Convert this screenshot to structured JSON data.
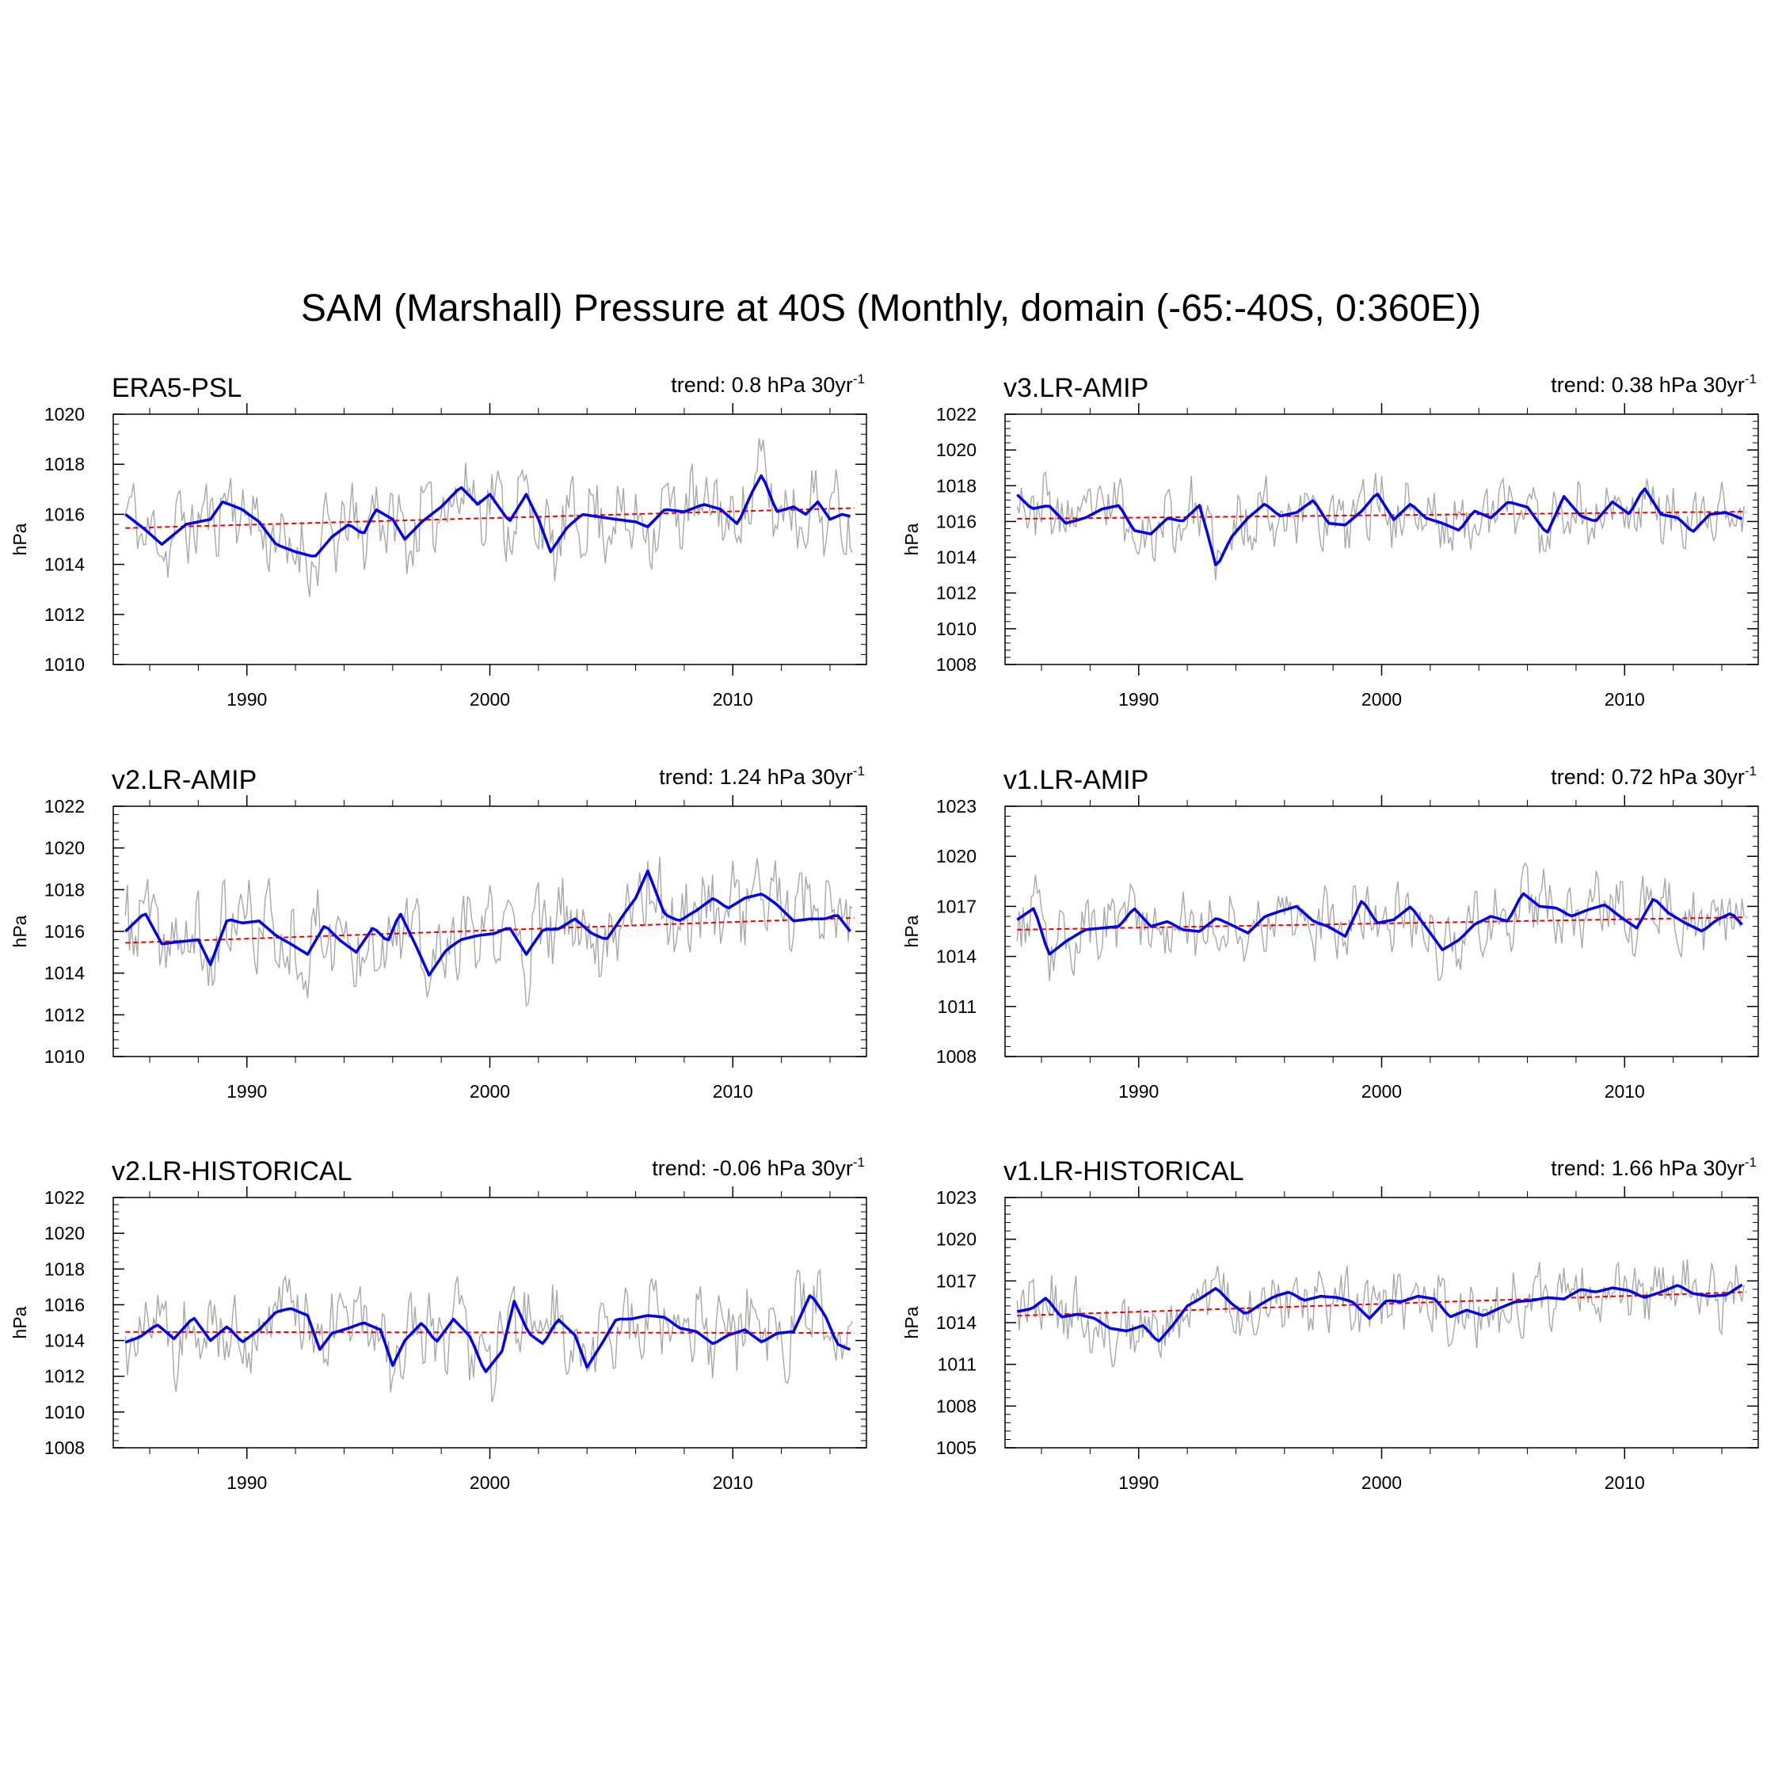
{
  "figure": {
    "title": "SAM (Marshall) Pressure at 40S (Monthly, domain (-65:-40S, 0:360E))"
  },
  "colors": {
    "monthly": "#a8a8a8",
    "smoothed": "#0000ee",
    "trend_line": "#ee0000",
    "axis": "#000000"
  },
  "chart_data": [
    {
      "type": "line",
      "title": "ERA5-PSL",
      "trend_label": "trend: 0.8 hPa 30yr",
      "trend_exp": "-1",
      "ylabel": "hPa",
      "xlim": [
        1984.5,
        2015.5
      ],
      "ylim": [
        1010,
        1020
      ],
      "yticks": [
        1010,
        1012,
        1014,
        1016,
        1018,
        1020
      ],
      "xticks": [
        1990,
        2000,
        2010
      ],
      "trend": [
        1015.45,
        1016.25
      ],
      "smoothed_points": [
        [
          1985.0,
          1016.0
        ],
        [
          1985.8,
          1015.4
        ],
        [
          1986.5,
          1014.8
        ],
        [
          1987.5,
          1015.6
        ],
        [
          1988.5,
          1015.8
        ],
        [
          1989.0,
          1016.5
        ],
        [
          1989.8,
          1016.2
        ],
        [
          1990.5,
          1015.7
        ],
        [
          1991.2,
          1014.8
        ],
        [
          1992.0,
          1014.5
        ],
        [
          1992.8,
          1014.3
        ],
        [
          1993.5,
          1015.1
        ],
        [
          1994.2,
          1015.6
        ],
        [
          1994.8,
          1015.2
        ],
        [
          1995.3,
          1016.2
        ],
        [
          1996.0,
          1015.8
        ],
        [
          1996.5,
          1015.0
        ],
        [
          1997.2,
          1015.7
        ],
        [
          1998.0,
          1016.3
        ],
        [
          1998.8,
          1017.1
        ],
        [
          1999.5,
          1016.4
        ],
        [
          2000.0,
          1016.8
        ],
        [
          2000.8,
          1015.7
        ],
        [
          2001.5,
          1016.8
        ],
        [
          2002.0,
          1015.8
        ],
        [
          2002.5,
          1014.5
        ],
        [
          2003.2,
          1015.5
        ],
        [
          2003.8,
          1016.0
        ],
        [
          2004.5,
          1015.9
        ],
        [
          2005.2,
          1015.8
        ],
        [
          2006.0,
          1015.7
        ],
        [
          2006.5,
          1015.5
        ],
        [
          2007.2,
          1016.2
        ],
        [
          2008.0,
          1016.1
        ],
        [
          2008.8,
          1016.4
        ],
        [
          2009.5,
          1016.2
        ],
        [
          2010.2,
          1015.6
        ],
        [
          2010.8,
          1016.9
        ],
        [
          2011.2,
          1017.6
        ],
        [
          2011.8,
          1016.1
        ],
        [
          2012.5,
          1016.3
        ],
        [
          2013.0,
          1016.0
        ],
        [
          2013.5,
          1016.5
        ],
        [
          2014.0,
          1015.8
        ],
        [
          2014.5,
          1016.0
        ],
        [
          2014.9,
          1015.9
        ]
      ],
      "monthly_std": 1.3,
      "seed": 11
    },
    {
      "type": "line",
      "title": "v3.LR-AMIP",
      "trend_label": "trend: 0.38 hPa 30yr",
      "trend_exp": "-1",
      "ylabel": "hPa",
      "xlim": [
        1984.5,
        2015.5
      ],
      "ylim": [
        1008,
        1022
      ],
      "yticks": [
        1008,
        1010,
        1012,
        1014,
        1016,
        1018,
        1020,
        1022
      ],
      "xticks": [
        1990,
        2000,
        2010
      ],
      "trend": [
        1016.15,
        1016.55
      ],
      "smoothed_points": [
        [
          1985.0,
          1017.5
        ],
        [
          1985.6,
          1016.7
        ],
        [
          1986.3,
          1016.9
        ],
        [
          1987.0,
          1015.9
        ],
        [
          1987.8,
          1016.2
        ],
        [
          1988.5,
          1016.7
        ],
        [
          1989.2,
          1016.9
        ],
        [
          1989.8,
          1015.5
        ],
        [
          1990.5,
          1015.3
        ],
        [
          1991.2,
          1016.2
        ],
        [
          1991.8,
          1016.0
        ],
        [
          1992.5,
          1016.9
        ],
        [
          1992.8,
          1015.5
        ],
        [
          1993.2,
          1013.4
        ],
        [
          1993.8,
          1015.1
        ],
        [
          1994.5,
          1016.2
        ],
        [
          1995.2,
          1017.0
        ],
        [
          1995.8,
          1016.3
        ],
        [
          1996.5,
          1016.5
        ],
        [
          1997.2,
          1017.2
        ],
        [
          1997.8,
          1015.9
        ],
        [
          1998.5,
          1015.8
        ],
        [
          1999.2,
          1016.6
        ],
        [
          1999.8,
          1017.6
        ],
        [
          2000.5,
          1016.1
        ],
        [
          2001.2,
          1017.0
        ],
        [
          2001.8,
          1016.2
        ],
        [
          2002.5,
          1015.9
        ],
        [
          2003.2,
          1015.5
        ],
        [
          2003.8,
          1016.6
        ],
        [
          2004.5,
          1016.2
        ],
        [
          2005.2,
          1017.1
        ],
        [
          2006.0,
          1016.8
        ],
        [
          2006.8,
          1015.3
        ],
        [
          2007.5,
          1017.4
        ],
        [
          2008.2,
          1016.3
        ],
        [
          2008.8,
          1016.0
        ],
        [
          2009.5,
          1017.1
        ],
        [
          2010.2,
          1016.4
        ],
        [
          2010.8,
          1017.9
        ],
        [
          2011.5,
          1016.4
        ],
        [
          2012.2,
          1016.2
        ],
        [
          2012.8,
          1015.4
        ],
        [
          2013.5,
          1016.4
        ],
        [
          2014.2,
          1016.5
        ],
        [
          2014.9,
          1016.1
        ]
      ],
      "monthly_std": 1.5,
      "seed": 23
    },
    {
      "type": "line",
      "title": "v2.LR-AMIP",
      "trend_label": "trend: 1.24 hPa 30yr",
      "trend_exp": "-1",
      "ylabel": "hPa",
      "xlim": [
        1984.5,
        2015.5
      ],
      "ylim": [
        1010,
        1022
      ],
      "yticks": [
        1010,
        1012,
        1014,
        1016,
        1018,
        1020,
        1022
      ],
      "xticks": [
        1990,
        2000,
        2010
      ],
      "trend": [
        1015.45,
        1016.65
      ],
      "smoothed_points": [
        [
          1985.0,
          1016.0
        ],
        [
          1985.8,
          1016.9
        ],
        [
          1986.5,
          1015.4
        ],
        [
          1987.2,
          1015.5
        ],
        [
          1988.0,
          1015.6
        ],
        [
          1988.5,
          1014.4
        ],
        [
          1989.2,
          1016.6
        ],
        [
          1989.8,
          1016.4
        ],
        [
          1990.5,
          1016.5
        ],
        [
          1991.2,
          1015.8
        ],
        [
          1991.8,
          1015.4
        ],
        [
          1992.5,
          1014.9
        ],
        [
          1993.2,
          1016.3
        ],
        [
          1993.8,
          1015.6
        ],
        [
          1994.5,
          1015.0
        ],
        [
          1995.2,
          1016.2
        ],
        [
          1995.8,
          1015.5
        ],
        [
          1996.3,
          1016.9
        ],
        [
          1997.0,
          1015.2
        ],
        [
          1997.5,
          1013.9
        ],
        [
          1998.2,
          1015.1
        ],
        [
          1998.8,
          1015.6
        ],
        [
          1999.5,
          1015.8
        ],
        [
          2000.2,
          1015.9
        ],
        [
          2000.8,
          1016.2
        ],
        [
          2001.5,
          1014.9
        ],
        [
          2002.2,
          1016.1
        ],
        [
          2002.8,
          1016.1
        ],
        [
          2003.5,
          1016.6
        ],
        [
          2004.2,
          1015.9
        ],
        [
          2004.8,
          1015.6
        ],
        [
          2005.5,
          1016.8
        ],
        [
          2006.0,
          1017.6
        ],
        [
          2006.5,
          1018.9
        ],
        [
          2007.2,
          1016.8
        ],
        [
          2007.8,
          1016.5
        ],
        [
          2008.5,
          1017.0
        ],
        [
          2009.2,
          1017.6
        ],
        [
          2009.8,
          1017.1
        ],
        [
          2010.5,
          1017.6
        ],
        [
          2011.2,
          1017.8
        ],
        [
          2011.8,
          1017.3
        ],
        [
          2012.5,
          1016.5
        ],
        [
          2013.2,
          1016.6
        ],
        [
          2013.8,
          1016.6
        ],
        [
          2014.3,
          1016.8
        ],
        [
          2014.9,
          1015.9
        ]
      ],
      "monthly_std": 1.7,
      "seed": 37
    },
    {
      "type": "line",
      "title": "v1.LR-AMIP",
      "trend_label": "trend: 0.72 hPa 30yr",
      "trend_exp": "-1",
      "ylabel": "hPa",
      "xlim": [
        1984.5,
        2015.5
      ],
      "ylim": [
        1008,
        1023
      ],
      "yticks": [
        1008,
        1011,
        1014,
        1017,
        1020,
        1023
      ],
      "xticks": [
        1990,
        2000,
        2010
      ],
      "trend": [
        1015.6,
        1016.35
      ],
      "smoothed_points": [
        [
          1985.0,
          1016.2
        ],
        [
          1985.7,
          1016.9
        ],
        [
          1986.3,
          1014.1
        ],
        [
          1987.0,
          1014.9
        ],
        [
          1987.8,
          1015.6
        ],
        [
          1988.5,
          1015.7
        ],
        [
          1989.2,
          1015.8
        ],
        [
          1989.8,
          1016.9
        ],
        [
          1990.5,
          1015.8
        ],
        [
          1991.2,
          1016.1
        ],
        [
          1991.8,
          1015.6
        ],
        [
          1992.5,
          1015.5
        ],
        [
          1993.2,
          1016.3
        ],
        [
          1993.8,
          1015.9
        ],
        [
          1994.5,
          1015.4
        ],
        [
          1995.2,
          1016.4
        ],
        [
          1995.8,
          1016.7
        ],
        [
          1996.5,
          1017.0
        ],
        [
          1997.2,
          1016.1
        ],
        [
          1997.8,
          1015.8
        ],
        [
          1998.5,
          1015.2
        ],
        [
          1999.2,
          1017.4
        ],
        [
          1999.8,
          1016.0
        ],
        [
          2000.5,
          1016.2
        ],
        [
          2001.2,
          1017.0
        ],
        [
          2001.8,
          1015.8
        ],
        [
          2002.5,
          1014.4
        ],
        [
          2003.2,
          1015.0
        ],
        [
          2003.8,
          1015.9
        ],
        [
          2004.5,
          1016.4
        ],
        [
          2005.2,
          1016.1
        ],
        [
          2005.8,
          1017.8
        ],
        [
          2006.5,
          1017.0
        ],
        [
          2007.2,
          1016.9
        ],
        [
          2007.8,
          1016.4
        ],
        [
          2008.5,
          1016.8
        ],
        [
          2009.2,
          1017.1
        ],
        [
          2009.8,
          1016.4
        ],
        [
          2010.5,
          1015.7
        ],
        [
          2011.2,
          1017.5
        ],
        [
          2011.8,
          1016.6
        ],
        [
          2012.5,
          1016.0
        ],
        [
          2013.2,
          1015.5
        ],
        [
          2013.8,
          1016.2
        ],
        [
          2014.4,
          1016.6
        ],
        [
          2014.9,
          1015.8
        ]
      ],
      "monthly_std": 1.6,
      "seed": 53
    },
    {
      "type": "line",
      "title": "v2.LR-HISTORICAL",
      "trend_label": "trend: -0.06 hPa 30yr",
      "trend_exp": "-1",
      "ylabel": "hPa",
      "xlim": [
        1984.5,
        2015.5
      ],
      "ylim": [
        1008,
        1022
      ],
      "yticks": [
        1008,
        1010,
        1012,
        1014,
        1016,
        1018,
        1020,
        1022
      ],
      "xticks": [
        1990,
        2000,
        2010
      ],
      "trend": [
        1014.48,
        1014.42
      ],
      "smoothed_points": [
        [
          1985.0,
          1013.9
        ],
        [
          1985.6,
          1014.2
        ],
        [
          1986.3,
          1014.9
        ],
        [
          1987.0,
          1014.1
        ],
        [
          1987.8,
          1015.3
        ],
        [
          1988.5,
          1014.0
        ],
        [
          1989.2,
          1014.8
        ],
        [
          1989.8,
          1013.9
        ],
        [
          1990.5,
          1014.6
        ],
        [
          1991.2,
          1015.6
        ],
        [
          1991.8,
          1015.8
        ],
        [
          1992.5,
          1015.4
        ],
        [
          1993.0,
          1013.5
        ],
        [
          1993.5,
          1014.4
        ],
        [
          1994.2,
          1014.7
        ],
        [
          1994.8,
          1015.0
        ],
        [
          1995.5,
          1014.6
        ],
        [
          1996.0,
          1012.6
        ],
        [
          1996.5,
          1014.0
        ],
        [
          1997.2,
          1015.0
        ],
        [
          1997.8,
          1013.9
        ],
        [
          1998.5,
          1015.2
        ],
        [
          1999.2,
          1014.2
        ],
        [
          1999.8,
          1012.2
        ],
        [
          2000.5,
          1013.4
        ],
        [
          2001.0,
          1016.2
        ],
        [
          2001.6,
          1014.4
        ],
        [
          2002.2,
          1013.8
        ],
        [
          2002.8,
          1015.2
        ],
        [
          2003.5,
          1014.3
        ],
        [
          2004.0,
          1012.5
        ],
        [
          2004.6,
          1013.8
        ],
        [
          2005.2,
          1015.2
        ],
        [
          2005.8,
          1015.2
        ],
        [
          2006.5,
          1015.4
        ],
        [
          2007.2,
          1015.3
        ],
        [
          2007.8,
          1014.7
        ],
        [
          2008.5,
          1014.5
        ],
        [
          2009.2,
          1013.8
        ],
        [
          2009.8,
          1014.3
        ],
        [
          2010.5,
          1014.6
        ],
        [
          2011.2,
          1013.9
        ],
        [
          2011.8,
          1014.4
        ],
        [
          2012.5,
          1014.5
        ],
        [
          2013.2,
          1016.6
        ],
        [
          2013.8,
          1015.4
        ],
        [
          2014.3,
          1013.8
        ],
        [
          2014.8,
          1013.5
        ]
      ],
      "monthly_std": 1.9,
      "seed": 71
    },
    {
      "type": "line",
      "title": "v1.LR-HISTORICAL",
      "trend_label": "trend: 1.66 hPa 30yr",
      "trend_exp": "-1",
      "ylabel": "hPa",
      "xlim": [
        1984.5,
        2015.5
      ],
      "ylim": [
        1005,
        1023
      ],
      "yticks": [
        1005,
        1008,
        1011,
        1014,
        1017,
        1020,
        1023
      ],
      "xticks": [
        1990,
        2000,
        2010
      ],
      "trend": [
        1014.5,
        1016.2
      ],
      "smoothed_points": [
        [
          1985.0,
          1014.8
        ],
        [
          1985.6,
          1015.0
        ],
        [
          1986.2,
          1015.8
        ],
        [
          1986.8,
          1014.4
        ],
        [
          1987.5,
          1014.6
        ],
        [
          1988.2,
          1014.3
        ],
        [
          1988.8,
          1013.6
        ],
        [
          1989.5,
          1013.4
        ],
        [
          1990.2,
          1013.8
        ],
        [
          1990.8,
          1012.6
        ],
        [
          1991.4,
          1013.8
        ],
        [
          1992.0,
          1015.2
        ],
        [
          1992.6,
          1015.8
        ],
        [
          1993.2,
          1016.5
        ],
        [
          1993.8,
          1015.4
        ],
        [
          1994.4,
          1014.6
        ],
        [
          1995.0,
          1015.3
        ],
        [
          1995.6,
          1015.9
        ],
        [
          1996.2,
          1016.2
        ],
        [
          1996.8,
          1015.6
        ],
        [
          1997.5,
          1015.9
        ],
        [
          1998.2,
          1015.8
        ],
        [
          1998.8,
          1015.5
        ],
        [
          1999.5,
          1014.3
        ],
        [
          2000.2,
          1015.6
        ],
        [
          2000.8,
          1015.5
        ],
        [
          2001.5,
          1015.9
        ],
        [
          2002.2,
          1015.7
        ],
        [
          2002.8,
          1014.4
        ],
        [
          2003.5,
          1014.9
        ],
        [
          2004.2,
          1014.5
        ],
        [
          2004.8,
          1015.0
        ],
        [
          2005.5,
          1015.5
        ],
        [
          2006.2,
          1015.6
        ],
        [
          2006.8,
          1015.8
        ],
        [
          2007.5,
          1015.7
        ],
        [
          2008.2,
          1016.4
        ],
        [
          2008.8,
          1016.2
        ],
        [
          2009.5,
          1016.5
        ],
        [
          2010.2,
          1016.3
        ],
        [
          2010.8,
          1015.8
        ],
        [
          2011.5,
          1016.2
        ],
        [
          2012.2,
          1016.7
        ],
        [
          2012.8,
          1016.1
        ],
        [
          2013.5,
          1015.9
        ],
        [
          2014.2,
          1016.0
        ],
        [
          2014.9,
          1016.8
        ]
      ],
      "monthly_std": 1.9,
      "seed": 89
    }
  ]
}
